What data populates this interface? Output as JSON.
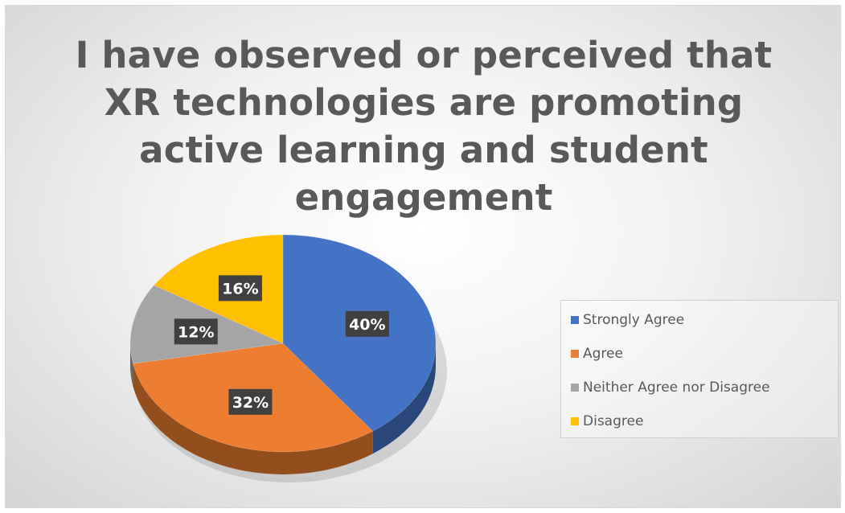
{
  "chart_data": {
    "type": "pie",
    "title_lines": [
      "I have observed or perceived that",
      "XR technologies are promoting",
      "active learning and student",
      "engagement"
    ],
    "slices": [
      {
        "label": "Strongly Agree",
        "value": 40,
        "display": "40%",
        "color": "#4472c4"
      },
      {
        "label": "Agree",
        "value": 32,
        "display": "32%",
        "color": "#ed7d31"
      },
      {
        "label": "Neither Agree nor Disagree",
        "value": 12,
        "display": "12%",
        "color": "#a5a5a5"
      },
      {
        "label": "Disagree",
        "value": 16,
        "display": "16%",
        "color": "#ffc000"
      }
    ],
    "legend_position": "right",
    "style": "3d-pie"
  }
}
